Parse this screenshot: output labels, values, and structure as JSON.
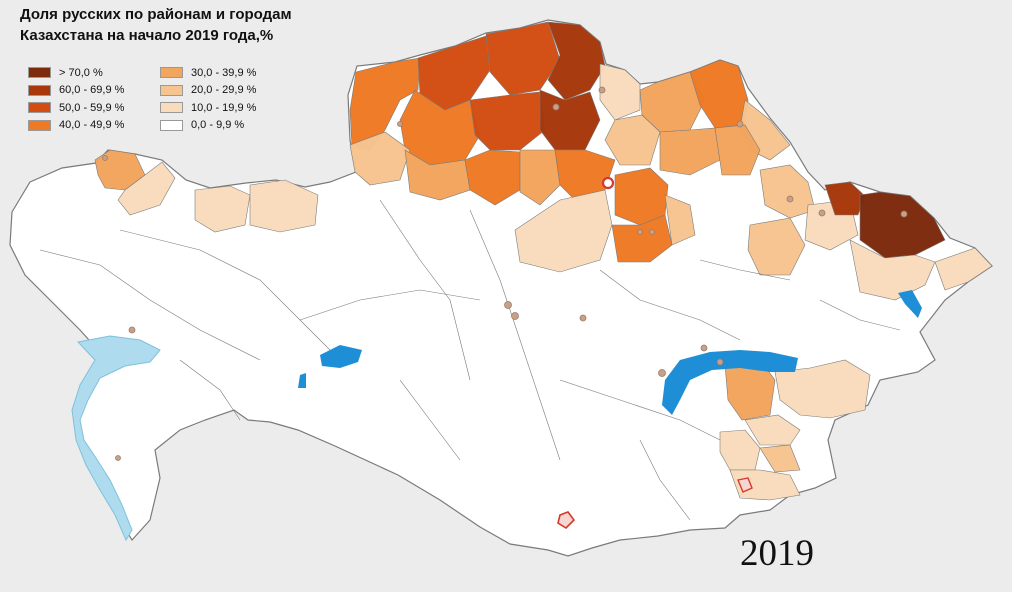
{
  "title_line_1": "Доля русских по районам и городам",
  "title_line_2": "Казахстана на начало 2019 года,%",
  "year": "2019",
  "colors": {
    "background": "#ececec",
    "region_border": "#7a7a7a",
    "water": "#1e8fd6",
    "caspian": "#aedcee",
    "city_marker": "#c8a089",
    "city_marker_red": "#d33a2c"
  },
  "legend": [
    {
      "label": "> 70,0 %",
      "color": "#7d2a0d"
    },
    {
      "label": "60,0 - 69,9 %",
      "color": "#a8380c"
    },
    {
      "label": "50,0 - 59,9 %",
      "color": "#d34d12"
    },
    {
      "label": "40,0 - 49,9 %",
      "color": "#ef7a25"
    },
    {
      "label": "30,0 - 39,9 %",
      "color": "#f2a55d"
    },
    {
      "label": "20,0 - 29,9 %",
      "color": "#f6c48f"
    },
    {
      "label": "10,0 - 19,9 %",
      "color": "#f9dcbc"
    },
    {
      "label": "0,0 - 9,9 %",
      "color": "#ffffff"
    }
  ]
}
